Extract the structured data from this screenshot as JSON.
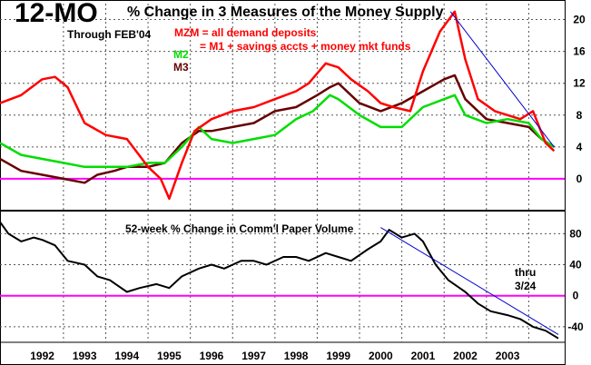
{
  "header": {
    "big_title": "12-MO",
    "title_rest": "% Change in 3 Measures of the Money Supply",
    "through": "Through  FEB'04"
  },
  "legend": {
    "mzm_line1": "MZM = all demand deposits",
    "mzm_line2": "= M1 + savings accts + money mkt funds",
    "m2": "M2",
    "m3": "M3"
  },
  "colors": {
    "mzm": "#ff0000",
    "m2": "#00dd00",
    "m3": "#660000",
    "cp": "#000000",
    "zero_line": "#ff00ff",
    "trend_line": "#0000cc",
    "grid": "#555555"
  },
  "chart_data": [
    {
      "type": "line",
      "title": "12-MO % Change in 3 Measures of the Money Supply",
      "ylim": [
        -4,
        22
      ],
      "y_ticks": [
        "20",
        "16",
        "12",
        "8",
        "4",
        "0"
      ],
      "y_tick_values": [
        20,
        16,
        12,
        8,
        4,
        0
      ],
      "zero_line": 0,
      "series": [
        {
          "name": "MZM",
          "color": "#ff0000",
          "x": [
            1991.0,
            1991.5,
            1992.0,
            1992.3,
            1992.6,
            1993.0,
            1993.5,
            1994.0,
            1994.5,
            1994.8,
            1995.0,
            1995.3,
            1995.6,
            1996.0,
            1996.5,
            1997.0,
            1997.5,
            1998.0,
            1998.3,
            1998.7,
            1999.0,
            1999.3,
            1999.7,
            2000.0,
            2000.3,
            2000.7,
            2001.0,
            2001.4,
            2001.75,
            2002.0,
            2002.3,
            2002.7,
            2003.0,
            2003.3,
            2003.6,
            2003.9,
            2004.1
          ],
          "y": [
            9.5,
            10.5,
            12.5,
            12.8,
            11.5,
            7.0,
            5.5,
            5.0,
            1.5,
            0.0,
            -2.5,
            2.0,
            6.0,
            7.5,
            8.5,
            9.0,
            10.0,
            11.0,
            12.0,
            14.5,
            14.0,
            12.5,
            11.0,
            9.5,
            9.0,
            8.5,
            13.5,
            18.5,
            21.0,
            15.0,
            10.0,
            8.5,
            8.0,
            7.5,
            8.5,
            4.5,
            3.5
          ]
        },
        {
          "name": "M2",
          "color": "#00dd00",
          "x": [
            1991.0,
            1991.5,
            1992.0,
            1992.5,
            1993.0,
            1993.5,
            1994.0,
            1994.5,
            1994.9,
            1995.3,
            1995.7,
            1996.0,
            1996.5,
            1997.0,
            1997.5,
            1998.0,
            1998.4,
            1998.8,
            1999.0,
            1999.5,
            2000.0,
            2000.5,
            2001.0,
            2001.5,
            2001.75,
            2002.0,
            2002.5,
            2003.0,
            2003.5,
            2003.8,
            2004.1
          ],
          "y": [
            4.5,
            3.0,
            2.5,
            2.0,
            1.5,
            1.5,
            1.5,
            2.0,
            2.0,
            4.0,
            6.5,
            5.0,
            4.5,
            5.0,
            5.5,
            7.5,
            8.5,
            10.5,
            10.0,
            8.0,
            6.5,
            6.5,
            9.0,
            10.0,
            10.5,
            8.0,
            7.0,
            7.5,
            7.0,
            5.0,
            4.0
          ]
        },
        {
          "name": "M3",
          "color": "#660000",
          "x": [
            1991.0,
            1991.5,
            1992.0,
            1992.5,
            1993.0,
            1993.3,
            1993.7,
            1994.0,
            1994.5,
            1994.9,
            1995.3,
            1995.7,
            1996.0,
            1996.5,
            1997.0,
            1997.5,
            1998.0,
            1998.5,
            1998.8,
            1999.0,
            1999.5,
            2000.0,
            2000.5,
            2001.0,
            2001.5,
            2001.75,
            2002.0,
            2002.5,
            2003.0,
            2003.5,
            2003.8,
            2004.1
          ],
          "y": [
            2.5,
            1.0,
            0.5,
            0.0,
            -0.5,
            0.5,
            1.0,
            1.5,
            1.5,
            2.0,
            4.5,
            6.0,
            6.0,
            6.5,
            7.0,
            8.5,
            9.0,
            10.5,
            11.5,
            12.0,
            9.5,
            8.5,
            9.5,
            11.0,
            12.5,
            13.0,
            10.0,
            7.5,
            7.0,
            6.5,
            5.0,
            4.0
          ]
        }
      ],
      "trend_line": {
        "x": [
          2001.65,
          2004.1
        ],
        "y": [
          21.0,
          4.0
        ]
      }
    },
    {
      "type": "line",
      "title": "52-week % Change in Comm'l Paper Volume",
      "ylim": [
        -60,
        105
      ],
      "y_ticks": [
        "80",
        "40",
        "0",
        "-40"
      ],
      "y_tick_values": [
        80,
        40,
        0,
        -40
      ],
      "zero_line": 0,
      "annotation_lines": [
        "thru",
        "3/24"
      ],
      "series": [
        {
          "name": "Comm'l Paper Volume",
          "color": "#000000",
          "x": [
            1991.0,
            1991.2,
            1991.5,
            1991.8,
            1992.0,
            1992.3,
            1992.6,
            1993.0,
            1993.3,
            1993.6,
            1994.0,
            1994.3,
            1994.7,
            1995.0,
            1995.3,
            1995.7,
            1996.0,
            1996.3,
            1996.7,
            1997.0,
            1997.3,
            1997.7,
            1998.0,
            1998.3,
            1998.7,
            1999.0,
            1999.3,
            1999.7,
            2000.0,
            2000.2,
            2000.5,
            2000.8,
            2001.0,
            2001.3,
            2001.6,
            2002.0,
            2002.3,
            2002.6,
            2003.0,
            2003.3,
            2003.6,
            2003.9,
            2004.2
          ],
          "y": [
            95,
            80,
            70,
            75,
            72,
            65,
            45,
            40,
            25,
            20,
            5,
            10,
            15,
            10,
            25,
            35,
            40,
            35,
            45,
            45,
            40,
            50,
            50,
            45,
            55,
            50,
            45,
            60,
            70,
            85,
            75,
            80,
            70,
            40,
            20,
            5,
            -10,
            -20,
            -25,
            -30,
            -40,
            -45,
            -55
          ]
        }
      ],
      "trend_line": {
        "x": [
          2000.0,
          2004.2
        ],
        "y": [
          88,
          -50
        ]
      }
    }
  ],
  "x_axis": {
    "x_range": [
      1991.0,
      2004.35
    ],
    "labels": [
      "1992",
      "1993",
      "1994",
      "1995",
      "1996",
      "1997",
      "1998",
      "1999",
      "2000",
      "2001",
      "2002",
      "2003"
    ],
    "label_years": [
      1992,
      1993,
      1994,
      1995,
      1996,
      1997,
      1998,
      1999,
      2000,
      2001,
      2002,
      2003
    ]
  }
}
